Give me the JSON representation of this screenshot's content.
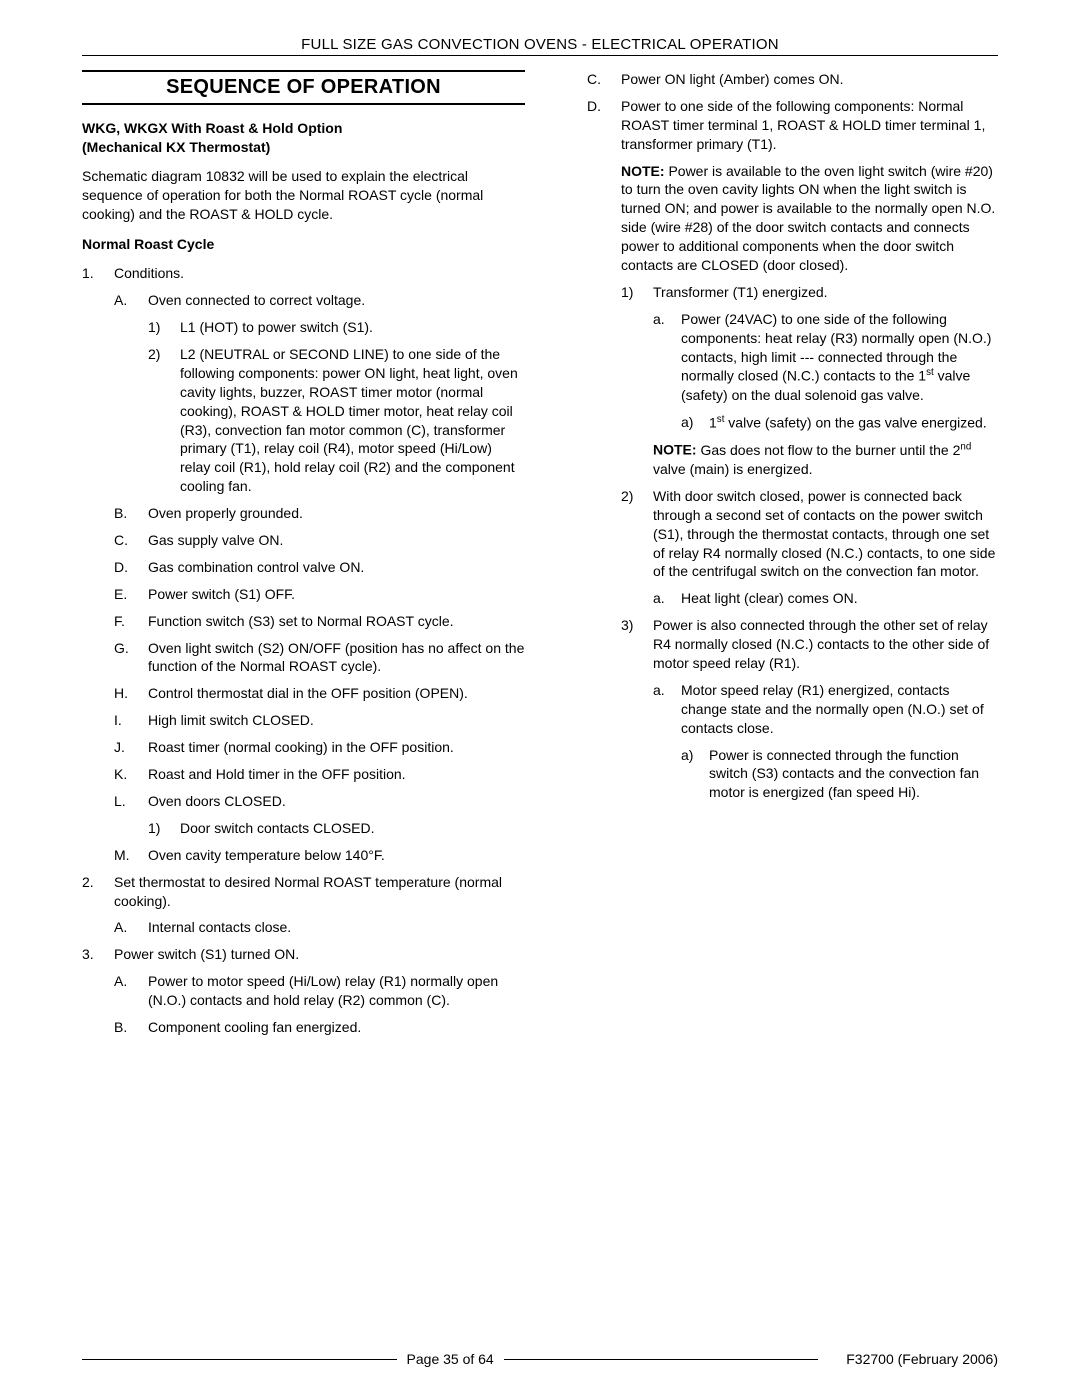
{
  "header": "FULL SIZE GAS CONVECTION OVENS - ELECTRICAL OPERATION",
  "section_title": "SEQUENCE OF OPERATION",
  "left": {
    "model_heading_l1": "WKG, WKGX With Roast & Hold Option",
    "model_heading_l2": "(Mechanical KX Thermostat)",
    "intro": "Schematic diagram 10832 will be used to explain the electrical sequence of operation for both the Normal ROAST cycle (normal cooking) and the ROAST & HOLD cycle.",
    "cycle_heading": "Normal Roast Cycle",
    "n1": {
      "lbl": "1.",
      "txt": "Conditions."
    },
    "A": {
      "lbl": "A.",
      "txt": "Oven connected to correct voltage."
    },
    "A1": {
      "lbl": "1)",
      "txt": "L1 (HOT) to power switch (S1)."
    },
    "A2": {
      "lbl": "2)",
      "txt": "L2 (NEUTRAL or SECOND LINE) to one side of the following components: power ON light, heat light, oven cavity lights, buzzer, ROAST timer motor (normal cooking), ROAST & HOLD timer motor, heat relay coil (R3), convection fan motor common (C), transformer primary (T1), relay coil (R4), motor speed (Hi/Low) relay coil (R1), hold relay coil (R2) and the component cooling fan."
    },
    "B": {
      "lbl": "B.",
      "txt": "Oven properly grounded."
    },
    "C": {
      "lbl": "C.",
      "txt": "Gas supply valve ON."
    },
    "D": {
      "lbl": "D.",
      "txt": "Gas combination control valve ON."
    },
    "E": {
      "lbl": "E.",
      "txt": "Power switch (S1) OFF."
    },
    "F": {
      "lbl": "F.",
      "txt": "Function switch (S3) set to Normal ROAST cycle."
    },
    "G": {
      "lbl": "G.",
      "txt": "Oven light switch (S2) ON/OFF (position has no affect on the function of the Normal ROAST cycle)."
    },
    "H": {
      "lbl": "H.",
      "txt": "Control thermostat dial in the OFF position (OPEN)."
    },
    "I": {
      "lbl": "I.",
      "txt": "High limit switch CLOSED."
    },
    "J": {
      "lbl": "J.",
      "txt": "Roast timer (normal cooking) in the OFF position."
    },
    "K": {
      "lbl": "K.",
      "txt": "Roast and Hold timer in the OFF position."
    },
    "L": {
      "lbl": "L.",
      "txt": "Oven doors CLOSED."
    },
    "L1": {
      "lbl": "1)",
      "txt": "Door switch contacts CLOSED."
    },
    "M": {
      "lbl": "M.",
      "txt": "Oven cavity temperature below 140°F."
    },
    "n2": {
      "lbl": "2.",
      "txt": "Set thermostat to desired Normal ROAST temperature (normal cooking)."
    },
    "n2A": {
      "lbl": "A.",
      "txt": "Internal contacts close."
    },
    "n3": {
      "lbl": "3.",
      "txt": "Power switch (S1) turned ON."
    },
    "n3A": {
      "lbl": "A.",
      "txt": "Power to motor speed (Hi/Low) relay (R1) normally open (N.O.) contacts and hold relay (R2) common (C)."
    },
    "n3B": {
      "lbl": "B.",
      "txt": "Component cooling fan energized."
    }
  },
  "right": {
    "C": {
      "lbl": "C.",
      "txt": "Power ON light (Amber) comes ON."
    },
    "D": {
      "lbl": "D.",
      "txt": "Power to one side of the following components: Normal ROAST timer terminal 1, ROAST & HOLD timer terminal 1, transformer primary (T1)."
    },
    "note1_label": "NOTE:",
    "note1_text": " Power is available to the oven light switch (wire #20) to turn the oven cavity lights ON when the light switch is turned ON; and power is available to the normally open N.O. side (wire #28) of the door switch contacts and connects power to additional components when the door switch contacts are CLOSED (door closed).",
    "D1": {
      "lbl": "1)",
      "txt": "Transformer (T1) energized."
    },
    "D1a_lbl": "a.",
    "D1a_pre": "Power (24VAC) to one side of the following components: heat relay (R3) normally open (N.O.) contacts, high limit --- connected through the normally closed (N.C.) contacts to the 1",
    "D1a_sup": "st",
    "D1a_post": " valve (safety) on the dual solenoid gas valve.",
    "D1a_a_lbl": "a)",
    "D1a_a_pre": "1",
    "D1a_a_sup": "st",
    "D1a_a_post": " valve (safety) on the gas valve energized.",
    "note2_label": "NOTE:",
    "note2_pre": " Gas does not flow to the burner until the 2",
    "note2_sup": "nd",
    "note2_post": " valve (main) is energized.",
    "D2": {
      "lbl": "2)",
      "txt": "With door switch closed, power is connected back through a second set of contacts on the power switch (S1), through the thermostat contacts, through one set of relay R4 normally closed (N.C.) contacts, to one side of the centrifugal switch on the convection fan motor."
    },
    "D2a": {
      "lbl": "a.",
      "txt": "Heat light (clear) comes ON."
    },
    "D3": {
      "lbl": "3)",
      "txt": "Power is also connected through the other set of relay R4 normally closed (N.C.) contacts to the other side of motor speed relay (R1)."
    },
    "D3a": {
      "lbl": "a.",
      "txt": "Motor speed relay (R1) energized, contacts change state and the normally open (N.O.) set of contacts close."
    },
    "D3a_a": {
      "lbl": "a)",
      "txt": "Power is connected through the function switch (S3) contacts and the convection fan motor is energized (fan speed Hi)."
    }
  },
  "footer": {
    "page": "Page 35 of  64",
    "doc": "F32700 (February 2006)"
  }
}
